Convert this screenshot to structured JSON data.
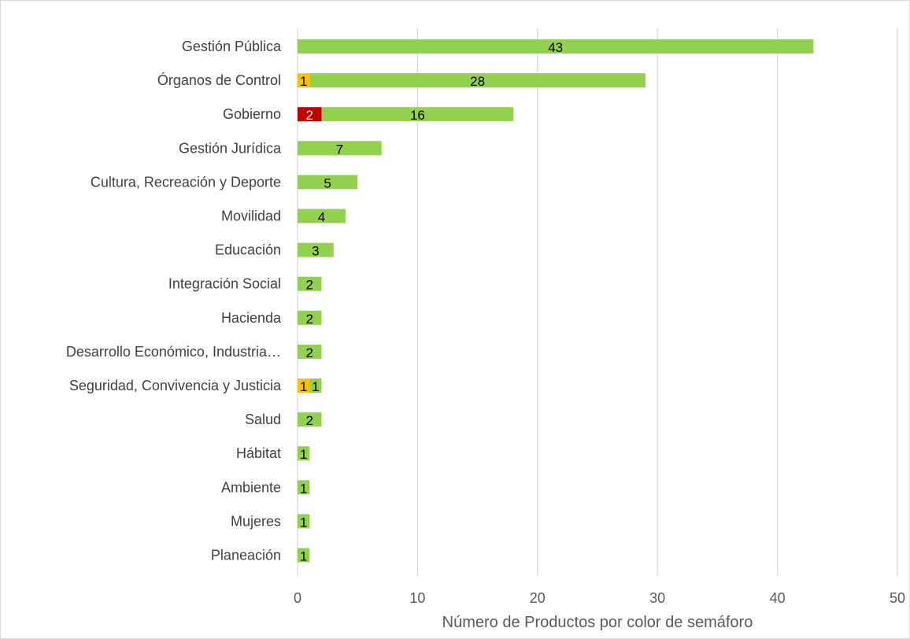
{
  "chart_data": {
    "type": "bar",
    "orientation": "horizontal",
    "stacked": true,
    "title": "",
    "xlabel": "Número de Productos por color de semáforo",
    "ylabel": "",
    "xlim": [
      0,
      50
    ],
    "xticks": [
      0,
      10,
      20,
      30,
      40,
      50
    ],
    "grid": "vertical",
    "legend": "none",
    "categories": [
      "Gestión Pública",
      "Órganos de Control",
      "Gobierno",
      "Gestión Jurídica",
      "Cultura, Recreación y Deporte",
      "Movilidad",
      "Educación",
      "Integración Social",
      "Hacienda",
      "Desarrollo Económico, Industria…",
      "Seguridad, Convivencia y Justicia",
      "Salud",
      "Hábitat",
      "Ambiente",
      "Mujeres",
      "Planeación"
    ],
    "series": [
      {
        "color": "#c00000",
        "values": [
          0,
          0,
          2,
          0,
          0,
          0,
          0,
          0,
          0,
          0,
          0,
          0,
          0,
          0,
          0,
          0
        ]
      },
      {
        "color": "#ffc000",
        "values": [
          0,
          1,
          0,
          0,
          0,
          0,
          0,
          0,
          0,
          0,
          1,
          0,
          0,
          0,
          0,
          0
        ]
      },
      {
        "color": "#92d050",
        "values": [
          43,
          28,
          16,
          7,
          5,
          4,
          3,
          2,
          2,
          2,
          1,
          2,
          1,
          1,
          1,
          1
        ]
      }
    ]
  }
}
